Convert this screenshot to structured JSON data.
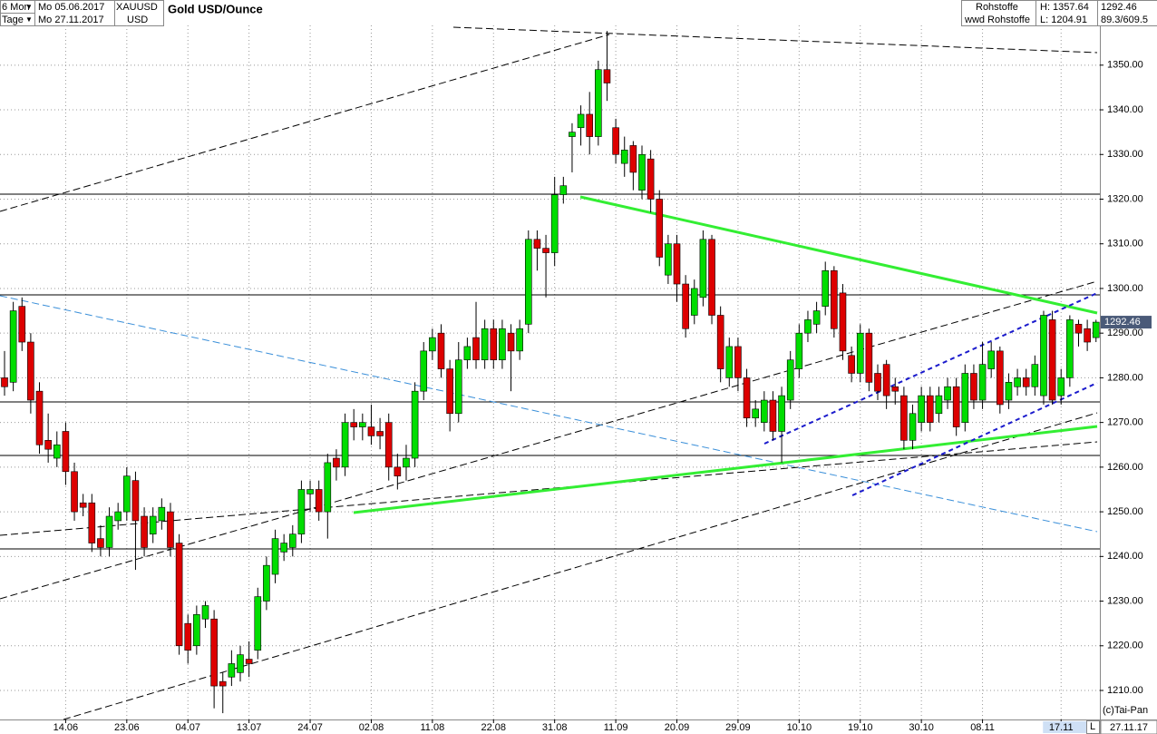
{
  "header": {
    "period": "6 Mon",
    "unit": "Tage",
    "from": "Mo 05.06.2017",
    "to": "Mo 27.11.2017",
    "symbol": "XAUUSD",
    "currency": "USD",
    "group": "Rohstoffe",
    "list": "wwd Rohstoffe",
    "high_label": "H: 1357.64",
    "low_label": "L: 1204.91",
    "ratio": "89.3/609.5",
    "copyright": "(c)Tai-Pan",
    "mode": "L"
  },
  "chart_data": {
    "type": "candlestick",
    "title": "Gold USD/Ounce",
    "categories": [
      null,
      null,
      null,
      null,
      null,
      null,
      null,
      "14.06",
      null,
      null,
      null,
      null,
      null,
      null,
      "23.06",
      null,
      null,
      null,
      null,
      null,
      null,
      "04.07",
      null,
      null,
      null,
      null,
      null,
      null,
      "13.07",
      null,
      null,
      null,
      null,
      null,
      null,
      "24.07",
      null,
      null,
      null,
      null,
      null,
      null,
      "02.08",
      null,
      null,
      null,
      null,
      null,
      null,
      "11.08",
      null,
      null,
      null,
      null,
      null,
      null,
      "22.08",
      null,
      null,
      null,
      null,
      null,
      null,
      "31.08",
      null,
      null,
      null,
      null,
      null,
      null,
      "11.09",
      null,
      null,
      null,
      null,
      null,
      null,
      "20.09",
      null,
      null,
      null,
      null,
      null,
      null,
      "29.09",
      null,
      null,
      null,
      null,
      null,
      null,
      "10.10",
      null,
      null,
      null,
      null,
      null,
      null,
      "19.10",
      null,
      null,
      null,
      null,
      null,
      null,
      "30.10",
      null,
      null,
      null,
      null,
      null,
      null,
      "08.11",
      null,
      null,
      null,
      null,
      null,
      null,
      null,
      null,
      "17.11",
      null,
      null,
      null,
      "27.11.17"
    ],
    "open": [
      1280,
      1279,
      1296,
      1288,
      1277,
      1266,
      1262,
      1268,
      1259,
      1252,
      1252,
      1244,
      1242,
      1248,
      1250,
      1257,
      1249,
      1245,
      1248,
      1250,
      1243,
      1225,
      1220,
      1226,
      1226,
      1212,
      1213,
      1214,
      1217,
      1219,
      1230,
      1236,
      1241,
      1242,
      1245,
      1254,
      1255,
      1250,
      1262,
      1260,
      1270,
      1269,
      1269,
      1268,
      1270,
      1260,
      1260,
      1262,
      1277,
      1286,
      1290,
      1282,
      1272,
      1284,
      1289,
      1284,
      1291,
      1284,
      1290,
      1286,
      1292,
      1311,
      1309,
      1308,
      1321,
      1334,
      1336,
      1339,
      1334,
      1349,
      1336,
      1328,
      1332,
      1322,
      1329,
      1320,
      1303,
      1310,
      1301,
      1294,
      1298,
      1311,
      1294,
      1280,
      1287,
      1280,
      1271,
      1270,
      1275,
      1268,
      1275,
      1282,
      1290,
      1292,
      1296,
      1304,
      1299,
      1285,
      1281,
      1290,
      1281,
      1283,
      1278,
      1276,
      1266,
      1270,
      1276,
      1272,
      1275,
      1278,
      1270,
      1281,
      1275,
      1282,
      1286,
      1275,
      1278,
      1280,
      1278,
      1276,
      1293,
      1276,
      1280,
      1292,
      1291,
      1289
    ],
    "high": [
      1286,
      1297,
      1298,
      1290,
      1279,
      1272,
      1268,
      1270,
      1261,
      1254,
      1254,
      1247,
      1251,
      1252,
      1260,
      1259,
      1251,
      1251,
      1253,
      1252,
      1245,
      1227,
      1229,
      1230,
      1228,
      1214,
      1219,
      1220,
      1221,
      1233,
      1240,
      1246,
      1245,
      1247,
      1257,
      1257,
      1257,
      1263,
      1264,
      1272,
      1273,
      1272,
      1274,
      1271,
      1272,
      1263,
      1265,
      1279,
      1288,
      1291,
      1292,
      1284,
      1288,
      1289,
      1297,
      1293,
      1293,
      1293,
      1292,
      1293,
      1313,
      1313,
      1312,
      1325,
      1325,
      1337,
      1341,
      1344,
      1351,
      1357.64,
      1338,
      1334,
      1333,
      1332,
      1331,
      1322,
      1312,
      1312,
      1303,
      1302,
      1313,
      1312,
      1296,
      1289,
      1289,
      1282,
      1275,
      1277,
      1277,
      1278,
      1286,
      1292,
      1295,
      1297,
      1306,
      1305,
      1301,
      1287,
      1292,
      1291,
      1283,
      1284,
      1280,
      1278,
      1274,
      1278,
      1278,
      1278,
      1280,
      1280,
      1283,
      1283,
      1288,
      1288,
      1287,
      1281,
      1282,
      1282,
      1285,
      1295,
      1295,
      1282,
      1294,
      1293,
      1293,
      1293
    ],
    "low": [
      1276,
      1277,
      1286,
      1272,
      1263,
      1261,
      1260,
      1256,
      1248,
      1249,
      1241,
      1240,
      1240,
      1246,
      1248,
      1237,
      1240,
      1243,
      1246,
      1240,
      1218,
      1216,
      1218,
      1224,
      1206,
      1204.91,
      1211,
      1212,
      1213,
      1217,
      1228,
      1234,
      1239,
      1240,
      1243,
      1250,
      1248,
      1244,
      1257,
      1258,
      1266,
      1266,
      1265,
      1264,
      1257,
      1255,
      1257,
      1260,
      1275,
      1284,
      1280,
      1268,
      1270,
      1282,
      1282,
      1282,
      1282,
      1282,
      1277,
      1284,
      1290,
      1304,
      1298,
      1305,
      1319,
      1326,
      1332,
      1330,
      1332,
      1342,
      1328,
      1325,
      1322,
      1320,
      1317,
      1305,
      1301,
      1297,
      1289,
      1292,
      1296,
      1292,
      1279,
      1278,
      1277,
      1269,
      1269,
      1268,
      1266,
      1261,
      1273,
      1280,
      1288,
      1290,
      1294,
      1289,
      1284,
      1279,
      1279,
      1277,
      1275,
      1273,
      1274,
      1264,
      1264,
      1268,
      1268,
      1270,
      1273,
      1267,
      1268,
      1273,
      1273,
      1280,
      1272,
      1273,
      1276,
      1276,
      1276,
      1274,
      1274,
      1274,
      1278,
      1287,
      1286,
      1288
    ],
    "close": [
      1278,
      1295,
      1288,
      1275,
      1265,
      1264,
      1265,
      1259,
      1250,
      1251,
      1243,
      1242,
      1249,
      1250,
      1258,
      1248,
      1242,
      1249,
      1251,
      1242,
      1220,
      1219,
      1227,
      1229,
      1211,
      1211,
      1216,
      1218,
      1216,
      1231,
      1238,
      1244,
      1243,
      1245,
      1255,
      1255,
      1250,
      1261,
      1260,
      1270,
      1269,
      1270,
      1267,
      1267,
      1260,
      1258,
      1262,
      1277,
      1286,
      1289,
      1282,
      1272,
      1284,
      1287,
      1284,
      1291,
      1284,
      1291,
      1286,
      1291,
      1311,
      1309,
      1308,
      1321,
      1323,
      1335,
      1339,
      1334,
      1349,
      1346,
      1330,
      1331,
      1326,
      1330,
      1320,
      1307,
      1310,
      1301,
      1291,
      1300,
      1311,
      1294,
      1282,
      1287,
      1280,
      1271,
      1273,
      1275,
      1268,
      1276,
      1284,
      1290,
      1293,
      1295,
      1304,
      1291,
      1286,
      1281,
      1290,
      1279,
      1277,
      1276,
      1277,
      1266,
      1272,
      1276,
      1270,
      1276,
      1278,
      1269,
      1281,
      1275,
      1283,
      1286,
      1274,
      1279,
      1280,
      1278,
      1283,
      1294,
      1275,
      1280,
      1293,
      1290,
      1288,
      1292.46
    ],
    "up_color": "#00dd00",
    "down_color": "#dd0000",
    "ylim": [
      1203.5,
      1358.9
    ],
    "yticks": [
      {
        "value": 1210,
        "label": "1210.00"
      },
      {
        "value": 1220,
        "label": "1220.00"
      },
      {
        "value": 1230,
        "label": "1230.00"
      },
      {
        "value": 1240,
        "label": "1240.00"
      },
      {
        "value": 1250,
        "label": "1250.00"
      },
      {
        "value": 1260,
        "label": "1260.00"
      },
      {
        "value": 1270,
        "label": "1270.00"
      },
      {
        "value": 1280,
        "label": "1280.00"
      },
      {
        "value": 1290,
        "label": "1290.00"
      },
      {
        "value": 1300,
        "label": "1300.00"
      },
      {
        "value": 1310,
        "label": "1310.00"
      },
      {
        "value": 1320,
        "label": "1320.00"
      },
      {
        "value": 1330,
        "label": "1330.00"
      },
      {
        "value": 1340,
        "label": "1340.00"
      },
      {
        "value": 1350,
        "label": "1350.00"
      }
    ],
    "grid": true
  }
}
